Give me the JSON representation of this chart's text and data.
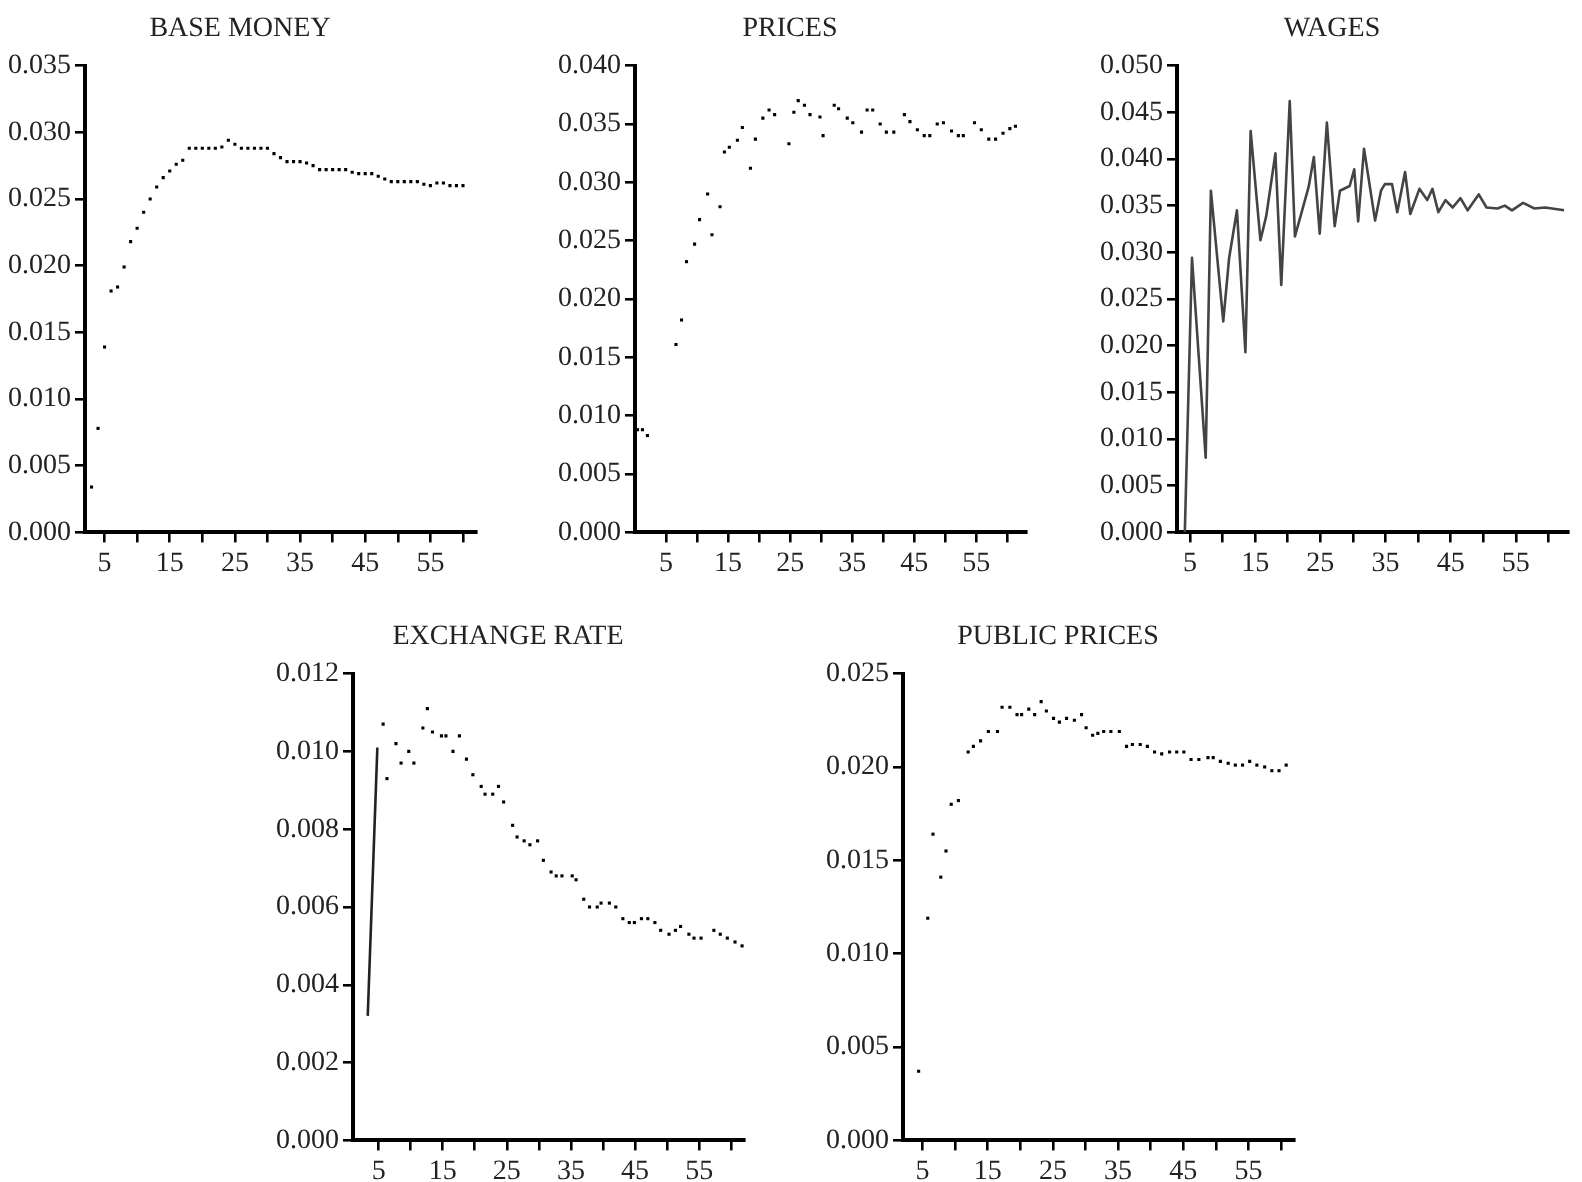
{
  "chart_data": [
    {
      "type": "scatter",
      "title": "BASE MONEY",
      "color": "#000000",
      "marker": "square",
      "x": [
        3,
        4,
        5,
        6,
        7,
        8,
        9,
        10,
        11,
        12,
        13,
        14,
        15,
        16,
        17,
        18,
        19,
        20,
        21,
        22,
        23,
        24,
        25,
        26,
        27,
        28,
        29,
        30,
        31,
        32,
        33,
        34,
        35,
        36,
        37,
        38,
        39,
        40,
        41,
        42,
        43,
        44,
        45,
        46,
        47,
        48,
        49,
        50,
        51,
        52,
        53,
        54,
        55,
        56,
        57,
        58,
        59,
        60
      ],
      "values": [
        0.0034,
        0.0078,
        0.0139,
        0.0181,
        0.0184,
        0.0199,
        0.0218,
        0.0228,
        0.024,
        0.025,
        0.0259,
        0.0266,
        0.0271,
        0.0276,
        0.0279,
        0.0288,
        0.0288,
        0.0288,
        0.0288,
        0.0288,
        0.0289,
        0.0294,
        0.0291,
        0.0288,
        0.0288,
        0.0288,
        0.0288,
        0.0288,
        0.0284,
        0.0281,
        0.0278,
        0.0278,
        0.0278,
        0.0277,
        0.0275,
        0.0272,
        0.0272,
        0.0272,
        0.0272,
        0.0272,
        0.027,
        0.0269,
        0.0269,
        0.0269,
        0.0267,
        0.0265,
        0.0263,
        0.0263,
        0.0263,
        0.0263,
        0.0263,
        0.0261,
        0.026,
        0.0262,
        0.0262,
        0.026,
        0.026,
        0.026
      ],
      "xlim": [
        2,
        62
      ],
      "xticks": [
        5,
        {
          "value": 10,
          "label": null
        },
        15,
        {
          "value": 20,
          "label": null
        },
        25,
        {
          "value": 30,
          "label": null
        },
        35,
        {
          "value": 40,
          "label": null
        },
        45,
        {
          "value": 50,
          "label": null
        },
        55,
        {
          "value": 60,
          "label": null
        }
      ],
      "ylim": [
        0,
        0.035
      ],
      "yticks": [
        {
          "value": 0,
          "label": "0.000"
        },
        {
          "value": 0.005,
          "label": "0.005"
        },
        {
          "value": 0.01,
          "label": "0.010"
        },
        {
          "value": 0.015,
          "label": "0.015"
        },
        {
          "value": 0.02,
          "label": "0.020"
        },
        {
          "value": 0.025,
          "label": "0.025"
        },
        {
          "value": 0.03,
          "label": "0.030"
        },
        {
          "value": 0.035,
          "label": "0.035"
        }
      ]
    },
    {
      "type": "scatter",
      "title": "PRICES",
      "color": "#000000",
      "marker": "square",
      "x": [
        0.4,
        1.2,
        2.0,
        6.6,
        7.5,
        8.3,
        9.6,
        10.4,
        11.7,
        12.4,
        13.7,
        14.4,
        15.2,
        16.5,
        17.3,
        18.6,
        19.4,
        20.6,
        21.6,
        22.5,
        24.8,
        25.6,
        26.3,
        27.3,
        28.2,
        29.8,
        30.3,
        32.1,
        32.8,
        34.2,
        35.1,
        36.5,
        37.4,
        38.3,
        39.5,
        40.5,
        41.7,
        43.4,
        44.3,
        45.5,
        46.6,
        47.5,
        48.7,
        49.7,
        51.0,
        52.1,
        52.9,
        54.7,
        55.8,
        57.0,
        58.1,
        59.3,
        60.4,
        61.3
      ],
      "values": [
        0.0088,
        0.0088,
        0.0083,
        0.0161,
        0.0182,
        0.0232,
        0.0247,
        0.0268,
        0.029,
        0.0255,
        0.0279,
        0.0326,
        0.033,
        0.0336,
        0.0347,
        0.0312,
        0.0337,
        0.0355,
        0.0362,
        0.0358,
        0.0333,
        0.036,
        0.037,
        0.0366,
        0.0358,
        0.0356,
        0.034,
        0.0366,
        0.0363,
        0.0355,
        0.0351,
        0.0343,
        0.0362,
        0.0362,
        0.035,
        0.0343,
        0.0343,
        0.0358,
        0.0352,
        0.0345,
        0.034,
        0.034,
        0.035,
        0.0351,
        0.0344,
        0.034,
        0.034,
        0.0351,
        0.0345,
        0.0337,
        0.0337,
        0.0342,
        0.0346,
        0.0348
      ],
      "xlim": [
        0,
        63
      ],
      "xticks": [
        5,
        {
          "value": 10,
          "label": null
        },
        15,
        {
          "value": 20,
          "label": null
        },
        25,
        {
          "value": 30,
          "label": null
        },
        35,
        {
          "value": 40,
          "label": null
        },
        45,
        {
          "value": 50,
          "label": null
        },
        55,
        {
          "value": 60,
          "label": null
        }
      ],
      "ylim": [
        0,
        0.04
      ],
      "yticks": [
        {
          "value": 0,
          "label": "0.000"
        },
        {
          "value": 0.005,
          "label": "0.005"
        },
        {
          "value": 0.01,
          "label": "0.010"
        },
        {
          "value": 0.015,
          "label": "0.015"
        },
        {
          "value": 0.02,
          "label": "0.020"
        },
        {
          "value": 0.025,
          "label": "0.025"
        },
        {
          "value": 0.03,
          "label": "0.030"
        },
        {
          "value": 0.035,
          "label": "0.035"
        },
        {
          "value": 0.04,
          "label": "0.040"
        }
      ]
    },
    {
      "type": "line",
      "title": "WAGES",
      "color": "#444444",
      "marker": "none",
      "x": [
        4.2,
        5.3,
        7.4,
        8.2,
        10.1,
        11.0,
        12.2,
        13.5,
        14.3,
        15.8,
        16.7,
        18.1,
        19.0,
        20.3,
        21.1,
        23.2,
        24.0,
        24.9,
        26.0,
        27.2,
        28.0,
        29.5,
        30.2,
        30.8,
        31.7,
        33.4,
        34.3,
        34.9,
        36.0,
        36.8,
        38.0,
        38.8,
        40.2,
        41.4,
        42.2,
        43.1,
        44.2,
        45.3,
        46.5,
        47.6,
        49.3,
        50.5,
        52.2,
        53.3,
        54.4,
        56.1,
        57.8,
        59.5,
        62.4
      ],
      "values": [
        0,
        0.0294,
        0.008,
        0.0366,
        0.0226,
        0.0294,
        0.0345,
        0.0193,
        0.043,
        0.0313,
        0.0339,
        0.0406,
        0.0265,
        0.0462,
        0.0317,
        0.037,
        0.0402,
        0.032,
        0.0439,
        0.0328,
        0.0366,
        0.0371,
        0.0389,
        0.0333,
        0.0411,
        0.0334,
        0.0366,
        0.0373,
        0.0373,
        0.0343,
        0.0386,
        0.0341,
        0.0368,
        0.0356,
        0.0368,
        0.0343,
        0.0356,
        0.0348,
        0.0358,
        0.0345,
        0.0362,
        0.0348,
        0.0347,
        0.035,
        0.0345,
        0.0353,
        0.0347,
        0.0348,
        0.0345
      ],
      "xlim": [
        3,
        63
      ],
      "xticks": [
        5,
        {
          "value": 10,
          "label": null
        },
        15,
        {
          "value": 20,
          "label": null
        },
        25,
        {
          "value": 30,
          "label": null
        },
        35,
        {
          "value": 40,
          "label": null
        },
        45,
        {
          "value": 50,
          "label": null
        },
        55,
        {
          "value": 60,
          "label": null
        }
      ],
      "ylim": [
        0,
        0.05
      ],
      "yticks": [
        {
          "value": 0,
          "label": "0.000"
        },
        {
          "value": 0.005,
          "label": "0.005"
        },
        {
          "value": 0.01,
          "label": "0.010"
        },
        {
          "value": 0.015,
          "label": "0.015"
        },
        {
          "value": 0.02,
          "label": "0.020"
        },
        {
          "value": 0.025,
          "label": "0.025"
        },
        {
          "value": 0.03,
          "label": "0.030"
        },
        {
          "value": 0.035,
          "label": "0.035"
        },
        {
          "value": 0.04,
          "label": "0.040"
        },
        {
          "value": 0.045,
          "label": "0.045"
        },
        {
          "value": 0.05,
          "label": "0.050"
        }
      ]
    },
    {
      "type": "scatter",
      "title": "EXCHANGE RATE",
      "series": [
        {
          "type": "line",
          "marker": "none",
          "color": "#222222",
          "x": [
            3.3,
            4.8
          ],
          "values": [
            0.0032,
            0.0101
          ]
        },
        {
          "marker": "square",
          "color": "#000000",
          "x": [
            5.7,
            6.3,
            7.7,
            8.5,
            9.7,
            10.5,
            11.9,
            12.6,
            13.4,
            14.8,
            15.5,
            16.6,
            17.6,
            18.7,
            19.7,
            21.0,
            21.6,
            22.8,
            23.7,
            24.5,
            25.9,
            26.6,
            27.7,
            28.6,
            29.8,
            30.7,
            31.9,
            32.7,
            33.6,
            35.2,
            35.8,
            37.0,
            37.9,
            39.1,
            39.7,
            41.0,
            42.0,
            43.1,
            44.1,
            44.9,
            46.0,
            47.0,
            48.1,
            49.0,
            50.3,
            51.3,
            52.1,
            53.4,
            54.2,
            55.3,
            57.3,
            58.3,
            59.4,
            60.6,
            61.7
          ],
          "values": [
            0.0107,
            0.0093,
            0.0102,
            0.0097,
            0.01,
            0.0097,
            0.0106,
            0.0111,
            0.0105,
            0.0104,
            0.0104,
            0.01,
            0.0104,
            0.0098,
            0.0094,
            0.0091,
            0.0089,
            0.0089,
            0.0091,
            0.0087,
            0.0081,
            0.0078,
            0.0077,
            0.0076,
            0.0077,
            0.0072,
            0.0069,
            0.0068,
            0.0068,
            0.0068,
            0.0067,
            0.0062,
            0.006,
            0.006,
            0.0061,
            0.0061,
            0.006,
            0.0057,
            0.0056,
            0.0056,
            0.0057,
            0.0057,
            0.0056,
            0.0054,
            0.0053,
            0.0054,
            0.0055,
            0.0053,
            0.0052,
            0.0052,
            0.0054,
            0.0053,
            0.0052,
            0.0051,
            0.005
          ]
        }
      ],
      "xlim": [
        1,
        62
      ],
      "xticks": [
        5,
        {
          "value": 10,
          "label": null
        },
        15,
        {
          "value": 20,
          "label": null
        },
        25,
        {
          "value": 30,
          "label": null
        },
        35,
        {
          "value": 40,
          "label": null
        },
        45,
        {
          "value": 50,
          "label": null
        },
        55,
        {
          "value": 60,
          "label": null
        }
      ],
      "ylim": [
        0,
        0.012
      ],
      "yticks": [
        {
          "value": 0,
          "label": "0.000"
        },
        {
          "value": 0.002,
          "label": "0.002"
        },
        {
          "value": 0.004,
          "label": "0.004"
        },
        {
          "value": 0.006,
          "label": "0.006"
        },
        {
          "value": 0.008,
          "label": "0.008"
        },
        {
          "value": 0.01,
          "label": "0.010"
        },
        {
          "value": 0.012,
          "label": "0.012"
        }
      ]
    },
    {
      "type": "scatter",
      "title": "PUBLIC PRICES",
      "color": "#000000",
      "marker": "square",
      "x": [
        4.4,
        5.8,
        6.6,
        7.8,
        8.6,
        9.4,
        10.5,
        12.0,
        12.8,
        13.9,
        15.1,
        16.5,
        17.2,
        18.4,
        19.5,
        20.2,
        21.3,
        22.2,
        23.2,
        24.0,
        25.1,
        26.0,
        27.1,
        28.3,
        29.4,
        30.1,
        31.1,
        31.9,
        32.8,
        33.9,
        35.2,
        36.3,
        37.2,
        38.4,
        39.5,
        40.6,
        41.7,
        42.9,
        44.0,
        45.1,
        46.2,
        47.4,
        48.8,
        49.6,
        50.7,
        51.9,
        53.0,
        54.1,
        55.2,
        56.3,
        57.5,
        58.6,
        59.7,
        60.8
      ],
      "values": [
        0.0037,
        0.0119,
        0.0164,
        0.0141,
        0.0155,
        0.018,
        0.0182,
        0.0208,
        0.0211,
        0.0214,
        0.0219,
        0.0219,
        0.0232,
        0.0232,
        0.0228,
        0.0228,
        0.0231,
        0.0228,
        0.0235,
        0.023,
        0.0226,
        0.0224,
        0.0226,
        0.0225,
        0.0228,
        0.0221,
        0.0217,
        0.0218,
        0.0219,
        0.0219,
        0.0219,
        0.0211,
        0.0212,
        0.0212,
        0.0211,
        0.0208,
        0.0207,
        0.0208,
        0.0208,
        0.0208,
        0.0204,
        0.0204,
        0.0205,
        0.0205,
        0.0203,
        0.0202,
        0.0201,
        0.0201,
        0.0203,
        0.0201,
        0.02,
        0.0198,
        0.0198,
        0.0201
      ],
      "xlim": [
        2,
        62
      ],
      "xticks": [
        5,
        {
          "value": 10,
          "label": null
        },
        15,
        {
          "value": 20,
          "label": null
        },
        25,
        {
          "value": 30,
          "label": null
        },
        35,
        {
          "value": 40,
          "label": null
        },
        45,
        {
          "value": 50,
          "label": null
        },
        55,
        {
          "value": 60,
          "label": null
        }
      ],
      "ylim": [
        0,
        0.025
      ],
      "yticks": [
        {
          "value": 0,
          "label": "0.000"
        },
        {
          "value": 0.005,
          "label": "0.005"
        },
        {
          "value": 0.01,
          "label": "0.010"
        },
        {
          "value": 0.015,
          "label": "0.015"
        },
        {
          "value": 0.02,
          "label": "0.020"
        },
        {
          "value": 0.025,
          "label": "0.025"
        }
      ]
    }
  ]
}
